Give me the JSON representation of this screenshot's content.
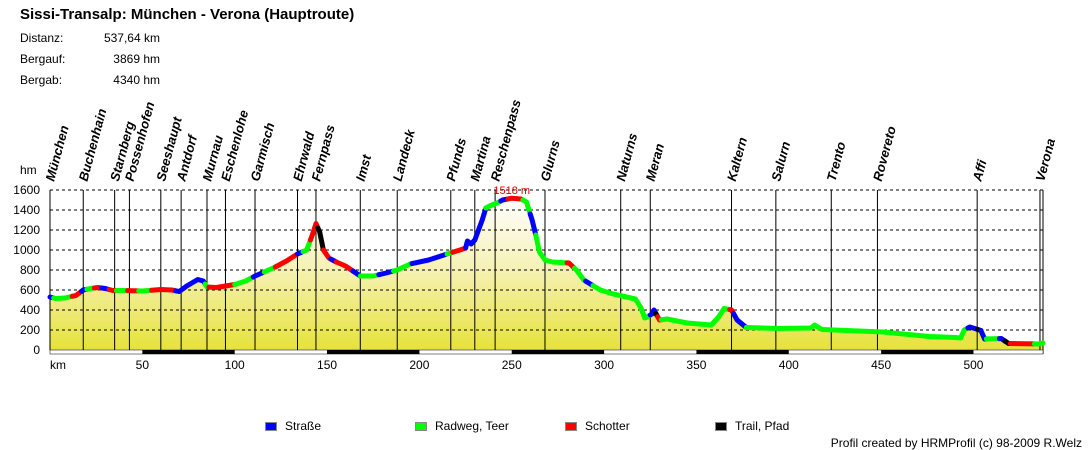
{
  "header": {
    "title": "Sissi-Transalp: München - Verona (Hauptroute)",
    "stats": [
      {
        "label": "Distanz:",
        "value": "537,64 km"
      },
      {
        "label": "Bergauf:",
        "value": "3869 hm"
      },
      {
        "label": "Bergab:",
        "value": "4340 hm"
      }
    ]
  },
  "credit": "Profil created by HRMProfil (c) 98-2009 R.Welz",
  "chart_data": {
    "type": "area",
    "ylabel": "hm",
    "xlabel": "km",
    "xlim": [
      0,
      537.64
    ],
    "ylim": [
      0,
      1600
    ],
    "xticks": [
      50,
      100,
      150,
      200,
      250,
      300,
      350,
      400,
      450,
      500
    ],
    "yticks": [
      0,
      200,
      400,
      600,
      800,
      1000,
      1200,
      1400,
      1600
    ],
    "grid": true,
    "max_label": {
      "km": 250,
      "value": 1518,
      "text": "1518 m",
      "color": "#e00000"
    },
    "legend_placement": "bottom",
    "surfaces": [
      {
        "key": "strasse",
        "name": "Straße",
        "color": "#0000ff"
      },
      {
        "key": "radweg",
        "name": "Radweg, Teer",
        "color": "#00ff00"
      },
      {
        "key": "schotter",
        "name": "Schotter",
        "color": "#ff0000"
      },
      {
        "key": "trail",
        "name": "Trail, Pfad",
        "color": "#000000"
      }
    ],
    "waypoints": [
      {
        "name": "München",
        "km": 0
      },
      {
        "name": "Buchenhain",
        "km": 18
      },
      {
        "name": "Starnberg",
        "km": 35
      },
      {
        "name": "Possenhofen",
        "km": 43
      },
      {
        "name": "Seeshaupt",
        "km": 60
      },
      {
        "name": "Antdorf",
        "km": 71
      },
      {
        "name": "Murnau",
        "km": 85
      },
      {
        "name": "Eschenlohe",
        "km": 95
      },
      {
        "name": "Garmisch",
        "km": 111
      },
      {
        "name": "Ehrwald",
        "km": 134
      },
      {
        "name": "Fernpass",
        "km": 144
      },
      {
        "name": "Imst",
        "km": 168
      },
      {
        "name": "Landeck",
        "km": 188
      },
      {
        "name": "Pfunds",
        "km": 217
      },
      {
        "name": "Martina",
        "km": 230
      },
      {
        "name": "Reschenpass",
        "km": 241
      },
      {
        "name": "Glurns",
        "km": 268
      },
      {
        "name": "Naturns",
        "km": 309
      },
      {
        "name": "Meran",
        "km": 325
      },
      {
        "name": "Kaltern",
        "km": 369
      },
      {
        "name": "Salurn",
        "km": 393
      },
      {
        "name": "Trento",
        "km": 423
      },
      {
        "name": "Rovereto",
        "km": 448
      },
      {
        "name": "Affi",
        "km": 502
      },
      {
        "name": "Verona",
        "km": 536
      }
    ],
    "profile": [
      [
        0,
        530
      ],
      [
        3,
        515
      ],
      [
        8,
        520
      ],
      [
        14,
        545
      ],
      [
        18,
        600
      ],
      [
        22,
        615
      ],
      [
        26,
        625
      ],
      [
        30,
        615
      ],
      [
        34,
        595
      ],
      [
        40,
        595
      ],
      [
        50,
        590
      ],
      [
        60,
        605
      ],
      [
        66,
        600
      ],
      [
        70,
        585
      ],
      [
        74,
        640
      ],
      [
        80,
        705
      ],
      [
        83,
        690
      ],
      [
        85,
        630
      ],
      [
        90,
        625
      ],
      [
        95,
        640
      ],
      [
        100,
        655
      ],
      [
        106,
        690
      ],
      [
        111,
        740
      ],
      [
        116,
        780
      ],
      [
        122,
        830
      ],
      [
        128,
        890
      ],
      [
        134,
        960
      ],
      [
        139,
        1000
      ],
      [
        142,
        1150
      ],
      [
        144,
        1265
      ],
      [
        146,
        1180
      ],
      [
        148,
        1000
      ],
      [
        151,
        920
      ],
      [
        155,
        880
      ],
      [
        160,
        840
      ],
      [
        164,
        790
      ],
      [
        168,
        740
      ],
      [
        175,
        740
      ],
      [
        182,
        770
      ],
      [
        188,
        800
      ],
      [
        195,
        860
      ],
      [
        205,
        900
      ],
      [
        215,
        960
      ],
      [
        222,
        1000
      ],
      [
        225,
        1020
      ],
      [
        226,
        1090
      ],
      [
        228,
        1060
      ],
      [
        230,
        1100
      ],
      [
        234,
        1300
      ],
      [
        236,
        1420
      ],
      [
        238,
        1440
      ],
      [
        242,
        1470
      ],
      [
        245,
        1500
      ],
      [
        250,
        1518
      ],
      [
        255,
        1510
      ],
      [
        258,
        1480
      ],
      [
        261,
        1300
      ],
      [
        263,
        1150
      ],
      [
        265,
        980
      ],
      [
        268,
        900
      ],
      [
        272,
        880
      ],
      [
        281,
        870
      ],
      [
        285,
        800
      ],
      [
        289,
        700
      ],
      [
        298,
        600
      ],
      [
        305,
        560
      ],
      [
        317,
        510
      ],
      [
        320,
        420
      ],
      [
        322,
        320
      ],
      [
        326,
        360
      ],
      [
        327,
        400
      ],
      [
        330,
        300
      ],
      [
        334,
        310
      ],
      [
        345,
        270
      ],
      [
        358,
        250
      ],
      [
        362,
        330
      ],
      [
        365,
        415
      ],
      [
        369,
        400
      ],
      [
        372,
        300
      ],
      [
        377,
        225
      ],
      [
        395,
        215
      ],
      [
        412,
        220
      ],
      [
        414,
        250
      ],
      [
        418,
        205
      ],
      [
        451,
        180
      ],
      [
        476,
        135
      ],
      [
        490,
        125
      ],
      [
        493,
        120
      ],
      [
        495,
        200
      ],
      [
        498,
        230
      ],
      [
        504,
        195
      ],
      [
        506,
        110
      ],
      [
        515,
        115
      ],
      [
        519,
        65
      ],
      [
        535,
        60
      ],
      [
        537.64,
        70
      ]
    ],
    "segments": [
      [
        0,
        2,
        "strasse"
      ],
      [
        2,
        12,
        "radweg"
      ],
      [
        12,
        17,
        "schotter"
      ],
      [
        17,
        20,
        "strasse"
      ],
      [
        20,
        24,
        "radweg"
      ],
      [
        24,
        28,
        "schotter"
      ],
      [
        28,
        32,
        "strasse"
      ],
      [
        32,
        36,
        "schotter"
      ],
      [
        36,
        42,
        "radweg"
      ],
      [
        42,
        48,
        "schotter"
      ],
      [
        48,
        55,
        "radweg"
      ],
      [
        55,
        68,
        "schotter"
      ],
      [
        68,
        84,
        "strasse"
      ],
      [
        84,
        86,
        "radweg"
      ],
      [
        86,
        100,
        "schotter"
      ],
      [
        100,
        110,
        "radweg"
      ],
      [
        110,
        116,
        "strasse"
      ],
      [
        116,
        122,
        "radweg"
      ],
      [
        122,
        134,
        "schotter"
      ],
      [
        134,
        137,
        "strasse"
      ],
      [
        137,
        141,
        "radweg"
      ],
      [
        141,
        145,
        "schotter"
      ],
      [
        145,
        148,
        "trail"
      ],
      [
        148,
        152,
        "schotter"
      ],
      [
        152,
        155,
        "strasse"
      ],
      [
        155,
        164,
        "schotter"
      ],
      [
        164,
        168,
        "strasse"
      ],
      [
        168,
        178,
        "radweg"
      ],
      [
        178,
        186,
        "strasse"
      ],
      [
        186,
        196,
        "radweg"
      ],
      [
        196,
        215,
        "strasse"
      ],
      [
        215,
        218,
        "radweg"
      ],
      [
        218,
        225,
        "schotter"
      ],
      [
        225,
        236,
        "strasse"
      ],
      [
        236,
        244,
        "radweg"
      ],
      [
        244,
        248,
        "strasse"
      ],
      [
        248,
        256,
        "schotter"
      ],
      [
        256,
        260,
        "radweg"
      ],
      [
        260,
        263,
        "strasse"
      ],
      [
        263,
        280,
        "radweg"
      ],
      [
        280,
        284,
        "schotter"
      ],
      [
        284,
        290,
        "radweg"
      ],
      [
        290,
        294,
        "strasse"
      ],
      [
        294,
        325,
        "radweg"
      ],
      [
        325,
        328,
        "strasse"
      ],
      [
        328,
        329,
        "trail"
      ],
      [
        329,
        331,
        "schotter"
      ],
      [
        331,
        368,
        "radweg"
      ],
      [
        368,
        370,
        "schotter"
      ],
      [
        370,
        377,
        "strasse"
      ],
      [
        377,
        497,
        "radweg"
      ],
      [
        497,
        502,
        "strasse"
      ],
      [
        502,
        504,
        "trail"
      ],
      [
        504,
        507,
        "strasse"
      ],
      [
        507,
        514,
        "radweg"
      ],
      [
        514,
        517,
        "strasse"
      ],
      [
        517,
        520,
        "trail"
      ],
      [
        520,
        533,
        "schotter"
      ],
      [
        533,
        537.64,
        "radweg"
      ]
    ]
  }
}
